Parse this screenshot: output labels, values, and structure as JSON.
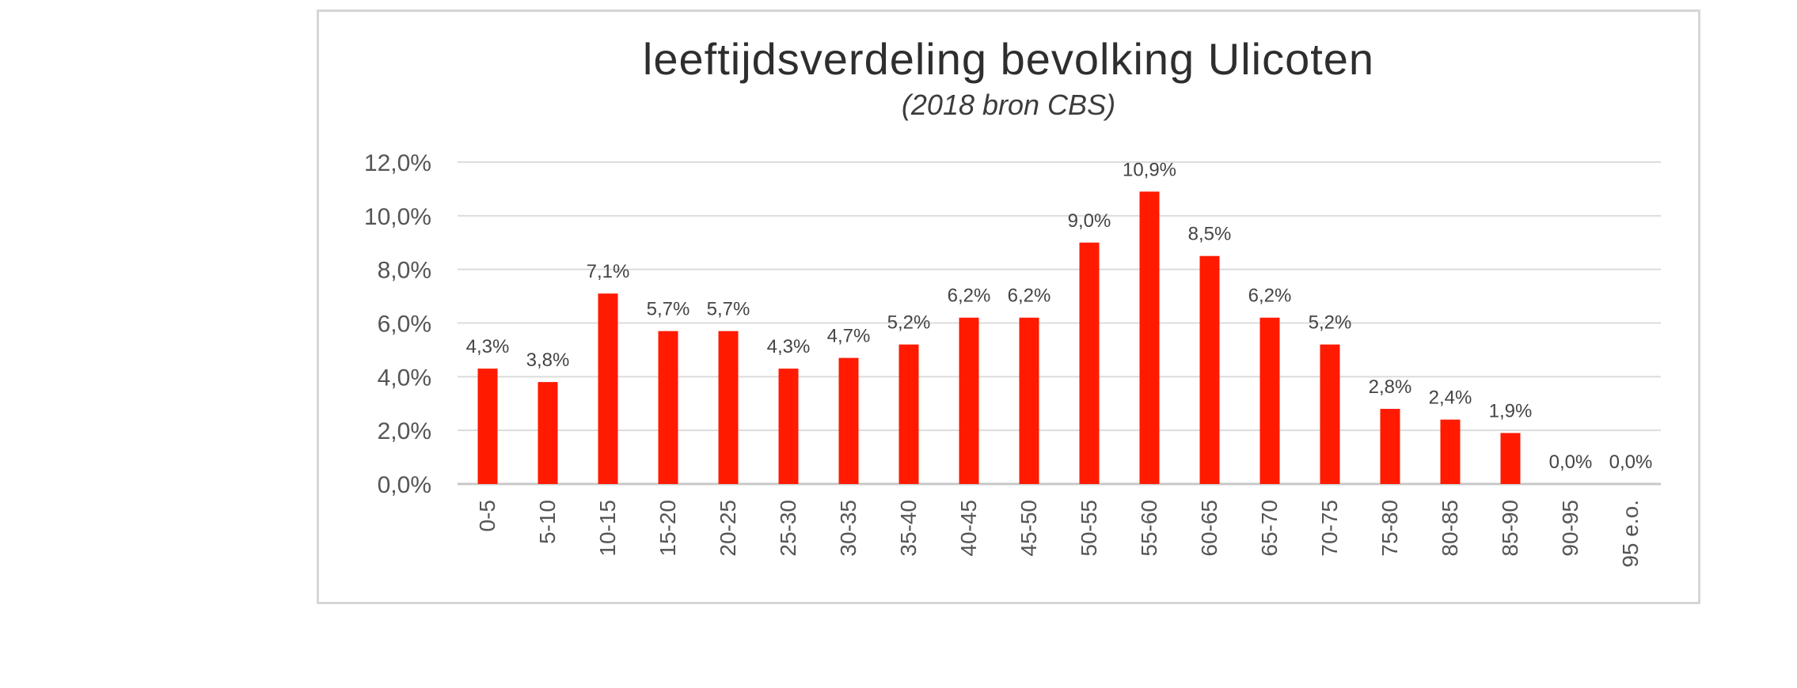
{
  "chart_data": {
    "type": "bar",
    "title": "leeftijdsverdeling bevolking Ulicoten",
    "subtitle": "(2018 bron CBS)",
    "xlabel": "",
    "ylabel": "",
    "ylim": [
      0,
      12
    ],
    "yticks": [
      {
        "value": 0,
        "label": "0,0%"
      },
      {
        "value": 2,
        "label": "2,0%"
      },
      {
        "value": 4,
        "label": "4,0%"
      },
      {
        "value": 6,
        "label": "6,0%"
      },
      {
        "value": 8,
        "label": "8,0%"
      },
      {
        "value": 10,
        "label": "10,0%"
      },
      {
        "value": 12,
        "label": "12,0%"
      }
    ],
    "grid": true,
    "bar_color": "#ff1a00",
    "categories": [
      "0-5",
      "5-10",
      "10-15",
      "15-20",
      "20-25",
      "25-30",
      "30-35",
      "35-40",
      "40-45",
      "45-50",
      "50-55",
      "55-60",
      "60-65",
      "65-70",
      "70-75",
      "75-80",
      "80-85",
      "85-90",
      "90-95",
      "95 e.o."
    ],
    "values": [
      4.3,
      3.8,
      7.1,
      5.7,
      5.7,
      4.3,
      4.7,
      5.2,
      6.2,
      6.2,
      9.0,
      10.9,
      8.5,
      6.2,
      5.2,
      2.8,
      2.4,
      1.9,
      0.0,
      0.0
    ],
    "data_labels": [
      "4,3%",
      "3,8%",
      "7,1%",
      "5,7%",
      "5,7%",
      "4,3%",
      "4,7%",
      "5,2%",
      "6,2%",
      "6,2%",
      "9,0%",
      "10,9%",
      "8,5%",
      "6,2%",
      "5,2%",
      "2,8%",
      "2,4%",
      "1,9%",
      "0,0%",
      "0,0%"
    ]
  }
}
